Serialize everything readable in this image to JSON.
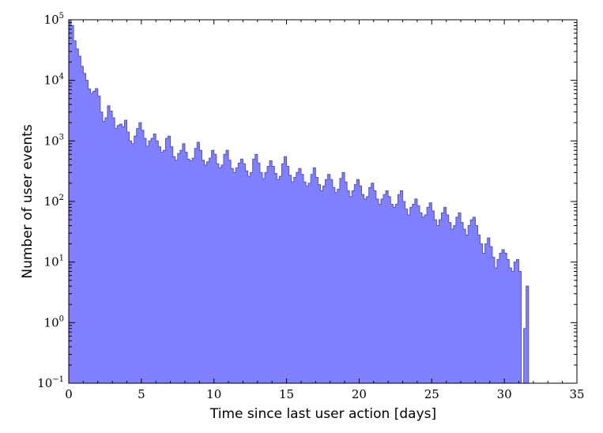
{
  "chart_data": {
    "type": "histogram",
    "title": "",
    "xlabel": "Time since last user action [days]",
    "ylabel": "Number of user events",
    "xlim": [
      0,
      35
    ],
    "ylim": [
      0.1,
      100000
    ],
    "yscale": "log",
    "grid": false,
    "legend": "none",
    "bar_color": "#8080ff",
    "edge_color": "#5555bb",
    "bin_width": 0.166667,
    "x_ticks": [
      "0",
      "5",
      "10",
      "15",
      "20",
      "25",
      "30",
      "35"
    ],
    "y_ticks": [
      {
        "base": "10",
        "exp": "−1"
      },
      {
        "base": "10",
        "exp": "0"
      },
      {
        "base": "10",
        "exp": "1"
      },
      {
        "base": "10",
        "exp": "2"
      },
      {
        "base": "10",
        "exp": "3"
      },
      {
        "base": "10",
        "exp": "4"
      },
      {
        "base": "10",
        "exp": "5"
      }
    ],
    "bin_start": 0,
    "values": [
      100000,
      80000,
      45000,
      33000,
      25000,
      17000,
      13000,
      10000,
      7200,
      6100,
      6600,
      7300,
      5500,
      3000,
      2100,
      2400,
      3800,
      3100,
      2400,
      1600,
      1800,
      1900,
      1700,
      2200,
      1400,
      1000,
      900,
      1200,
      1600,
      2000,
      1500,
      1100,
      820,
      1000,
      1100,
      1300,
      1000,
      800,
      650,
      700,
      1100,
      1200,
      800,
      550,
      480,
      620,
      700,
      900,
      650,
      500,
      470,
      520,
      750,
      950,
      700,
      480,
      400,
      450,
      520,
      700,
      600,
      420,
      360,
      400,
      600,
      700,
      480,
      350,
      300,
      360,
      430,
      500,
      420,
      320,
      260,
      300,
      500,
      600,
      430,
      300,
      240,
      300,
      380,
      470,
      380,
      290,
      230,
      260,
      420,
      550,
      380,
      270,
      210,
      250,
      300,
      350,
      280,
      210,
      180,
      200,
      280,
      360,
      250,
      190,
      150,
      180,
      230,
      280,
      230,
      170,
      140,
      160,
      240,
      300,
      210,
      150,
      120,
      150,
      190,
      230,
      180,
      130,
      110,
      120,
      170,
      200,
      150,
      110,
      90,
      110,
      130,
      150,
      120,
      90,
      80,
      90,
      130,
      150,
      100,
      75,
      60,
      80,
      90,
      110,
      85,
      65,
      55,
      60,
      80,
      95,
      70,
      50,
      40,
      50,
      65,
      80,
      60,
      45,
      35,
      40,
      55,
      65,
      45,
      35,
      28,
      40,
      50,
      55,
      40,
      28,
      20,
      14,
      20,
      25,
      18,
      12,
      8,
      11,
      14,
      16,
      14,
      11,
      8,
      7,
      10,
      11,
      7,
      0.1,
      0.8,
      4,
      0.1,
      0.1
    ]
  }
}
